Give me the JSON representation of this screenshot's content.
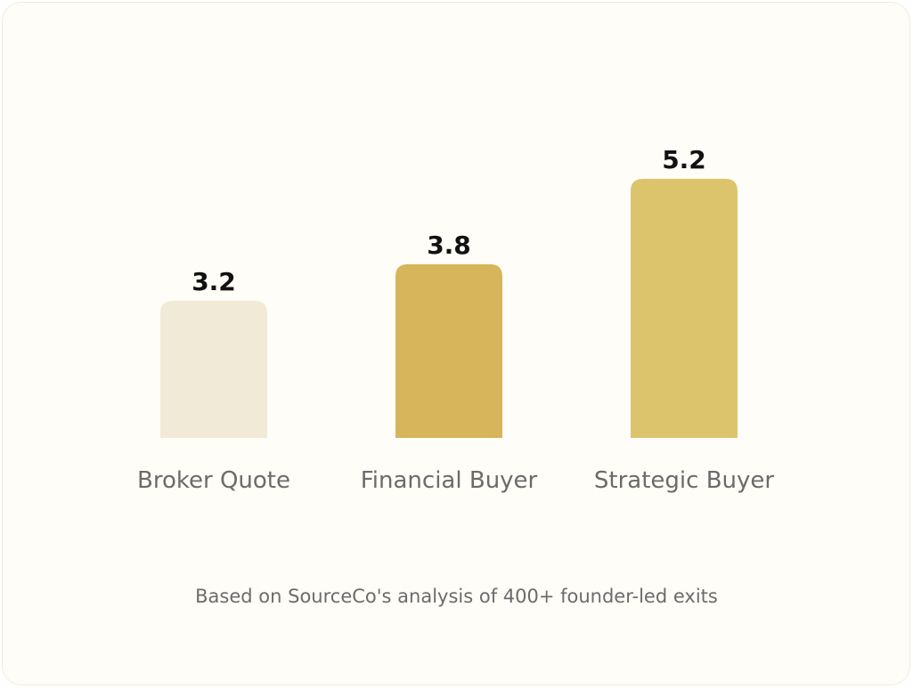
{
  "chart_data": {
    "type": "bar",
    "categories": [
      "Broker Quote",
      "Financial Buyer",
      "Strategic Buyer"
    ],
    "values": [
      3.2,
      3.8,
      5.2
    ],
    "value_labels": [
      "3.2",
      "3.8",
      "5.2"
    ],
    "colors": [
      "#f1ead6",
      "#d6b55b",
      "#dcc46c"
    ],
    "title": "",
    "xlabel": "",
    "ylabel": "",
    "grid": false
  },
  "footnote": "Based on SourceCo's analysis of 400+ founder-led exits"
}
